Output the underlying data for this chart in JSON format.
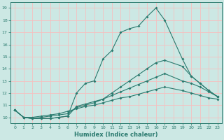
{
  "xlabel": "Humidex (Indice chaleur)",
  "background_color": "#cce8e4",
  "grid_color": "#f5c0c0",
  "line_color": "#2a7a6e",
  "xlim": [
    -0.5,
    23.5
  ],
  "ylim": [
    9.5,
    19.5
  ],
  "xticks": [
    0,
    1,
    2,
    3,
    4,
    5,
    6,
    7,
    8,
    9,
    10,
    11,
    12,
    13,
    14,
    15,
    16,
    17,
    18,
    19,
    20,
    21,
    22,
    23
  ],
  "yticks": [
    10,
    11,
    12,
    13,
    14,
    15,
    16,
    17,
    18,
    19
  ],
  "series": [
    {
      "x": [
        0,
        1,
        2,
        3,
        4,
        5,
        6,
        7,
        8,
        9,
        10,
        11,
        12,
        13,
        14,
        15,
        16,
        17,
        19,
        20,
        21,
        22,
        23
      ],
      "y": [
        10.6,
        10.0,
        9.9,
        9.9,
        9.9,
        10.0,
        10.1,
        12.0,
        12.8,
        13.0,
        14.8,
        15.5,
        17.0,
        17.3,
        17.5,
        18.3,
        19.0,
        18.0,
        14.8,
        13.4,
        12.8,
        12.2,
        11.7
      ]
    },
    {
      "x": [
        0,
        1,
        2,
        3,
        4,
        5,
        6,
        7,
        8,
        9,
        10,
        11,
        12,
        13,
        14,
        15,
        16,
        17,
        19,
        20,
        21,
        22,
        23
      ],
      "y": [
        10.6,
        10.0,
        9.9,
        9.9,
        9.9,
        10.0,
        10.1,
        10.9,
        11.1,
        11.3,
        11.5,
        12.0,
        12.5,
        13.0,
        13.5,
        14.0,
        14.5,
        14.7,
        14.2,
        13.4,
        12.8,
        12.2,
        11.7
      ]
    },
    {
      "x": [
        0,
        1,
        2,
        3,
        4,
        5,
        6,
        7,
        8,
        9,
        10,
        11,
        12,
        13,
        14,
        15,
        16,
        17,
        19,
        20,
        21,
        22,
        23
      ],
      "y": [
        10.6,
        10.0,
        9.9,
        10.0,
        10.1,
        10.2,
        10.3,
        10.8,
        11.0,
        11.2,
        11.5,
        11.8,
        12.1,
        12.4,
        12.7,
        13.0,
        13.3,
        13.6,
        13.0,
        12.8,
        12.5,
        12.1,
        11.7
      ]
    },
    {
      "x": [
        0,
        1,
        2,
        3,
        4,
        5,
        6,
        7,
        8,
        9,
        10,
        11,
        12,
        13,
        14,
        15,
        16,
        17,
        19,
        20,
        21,
        22,
        23
      ],
      "y": [
        10.6,
        10.0,
        10.0,
        10.1,
        10.2,
        10.3,
        10.5,
        10.7,
        10.9,
        11.0,
        11.2,
        11.4,
        11.6,
        11.7,
        11.9,
        12.1,
        12.3,
        12.5,
        12.2,
        12.0,
        11.8,
        11.6,
        11.5
      ]
    }
  ]
}
